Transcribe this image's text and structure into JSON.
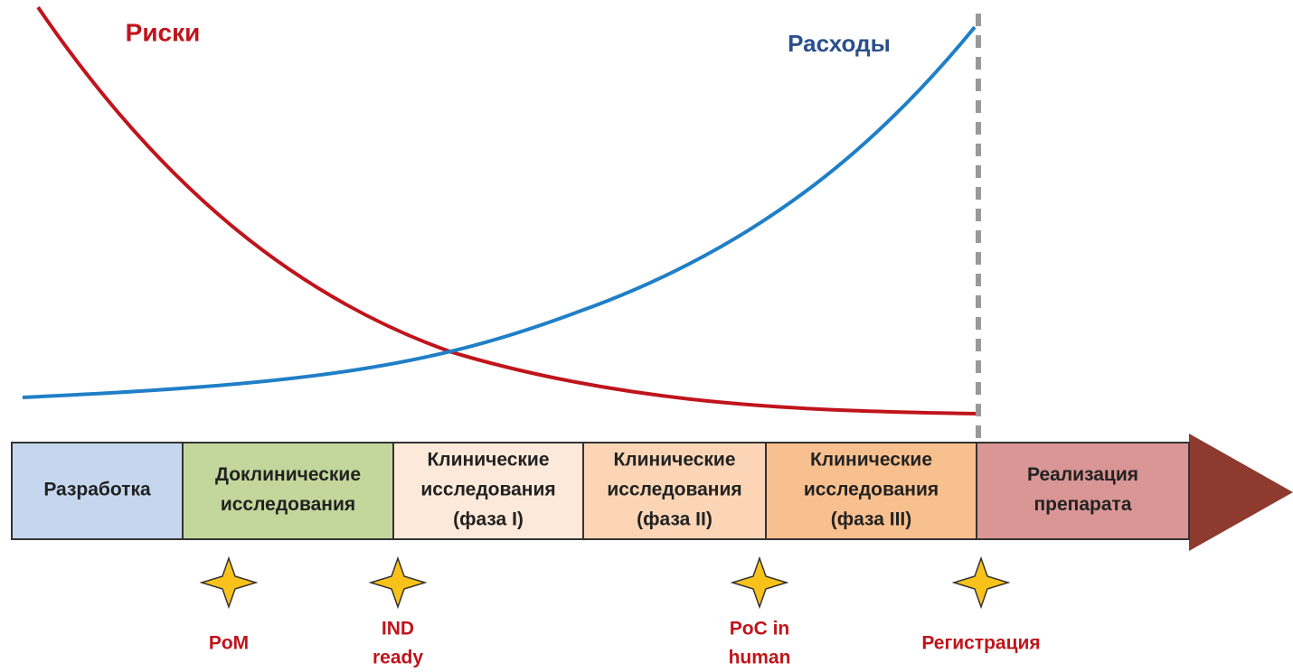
{
  "curves": {
    "risk": "Риски",
    "cost": "Расходы"
  },
  "stages": [
    {
      "lines": [
        "Разработка"
      ]
    },
    {
      "lines": [
        "Доклинические",
        "исследования"
      ]
    },
    {
      "lines": [
        "Клинические",
        "исследования",
        "(фаза I)"
      ]
    },
    {
      "lines": [
        "Клинические",
        "исследования",
        "(фаза II)"
      ]
    },
    {
      "lines": [
        "Клинические",
        "исследования",
        "(фаза III)"
      ]
    },
    {
      "lines": [
        "Реализация",
        "препарата"
      ]
    }
  ],
  "milestones": [
    {
      "lines": [
        "PoM"
      ]
    },
    {
      "lines": [
        "IND",
        "ready"
      ]
    },
    {
      "lines": [
        "PoC in",
        "human"
      ]
    },
    {
      "lines": [
        "Регистрация"
      ]
    }
  ]
}
